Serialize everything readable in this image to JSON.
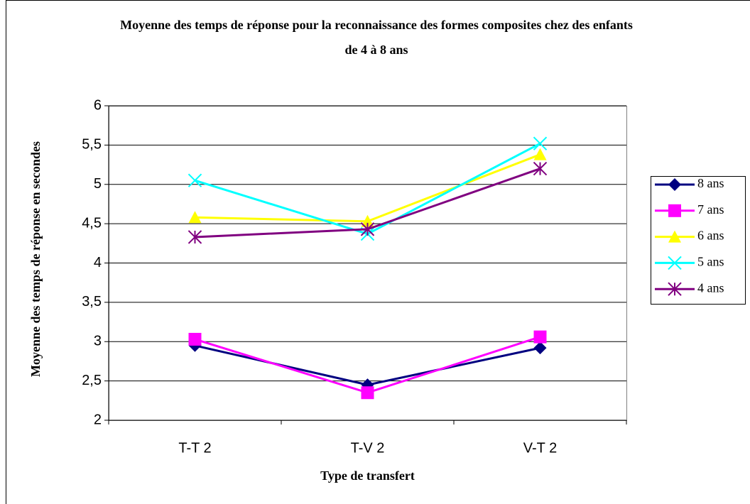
{
  "chart_data": {
    "type": "line",
    "title": "Moyenne des temps de réponse  pour la reconnaissance des formes composites chez des enfants de 4 à 8 ans",
    "x_label": "Type de transfert",
    "y_label": "Moyenne des temps de réponse en secondes",
    "categories": [
      "T-T 2",
      "T-V 2",
      "V-T 2"
    ],
    "series": [
      {
        "name": "8 ans",
        "color": "#000080",
        "marker": "diamond",
        "values": [
          2.95,
          2.45,
          2.92
        ]
      },
      {
        "name": "7 ans",
        "color": "#ff00ff",
        "marker": "square",
        "values": [
          3.03,
          2.35,
          3.06
        ]
      },
      {
        "name": "6 ans",
        "color": "#ffff00",
        "marker": "triangle",
        "values": [
          4.58,
          4.53,
          5.38
        ]
      },
      {
        "name": "5 ans",
        "color": "#00ffff",
        "marker": "x",
        "values": [
          5.05,
          4.37,
          5.52
        ]
      },
      {
        "name": "4 ans",
        "color": "#800080",
        "marker": "star",
        "values": [
          4.33,
          4.43,
          5.2
        ]
      }
    ],
    "ylim": [
      2,
      6
    ],
    "yticks": [
      2,
      {
        "value": 2.5,
        "label": "2,5"
      },
      3,
      {
        "value": 3.5,
        "label": "3,5"
      },
      4,
      {
        "value": 4.5,
        "label": "4,5"
      },
      5,
      {
        "value": 5.5,
        "label": "5,5"
      },
      6
    ],
    "grid": true,
    "legend": "right"
  }
}
